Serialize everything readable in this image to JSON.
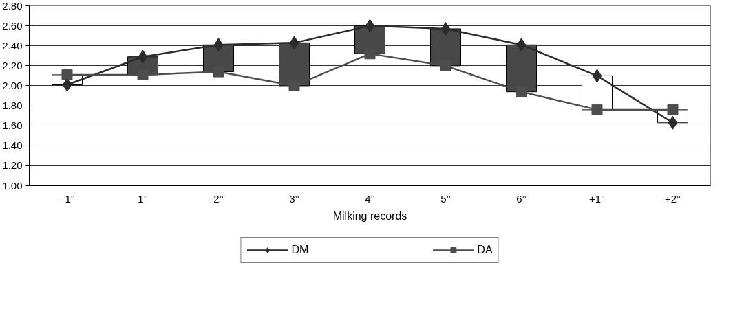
{
  "chart_data": {
    "type": "line",
    "xlabel": "Milking records",
    "categories": [
      "–1°",
      "1°",
      "2°",
      "3°",
      "4°",
      "5°",
      "6°",
      "+1°",
      "+2°"
    ],
    "ylim": [
      1.0,
      2.8
    ],
    "yticks": [
      {
        "value": 1.0,
        "label": "1.00"
      },
      {
        "value": 1.2,
        "label": "1.20"
      },
      {
        "value": 1.4,
        "label": "1.40"
      },
      {
        "value": 1.6,
        "label": "1.60"
      },
      {
        "value": 1.8,
        "label": "1.80"
      },
      {
        "value": 2.0,
        "label": "2.00"
      },
      {
        "value": 2.2,
        "label": "2.20"
      },
      {
        "value": 2.4,
        "label": "2.40"
      },
      {
        "value": 2.6,
        "label": "2.60"
      },
      {
        "value": 2.8,
        "label": "2.80"
      }
    ],
    "grid": "y",
    "legend": "bottom",
    "line_style": "solid",
    "series": [
      {
        "type": "bar",
        "base": [
          2.11,
          2.11,
          2.14,
          2.0,
          2.32,
          2.2,
          1.94,
          1.76,
          1.76
        ],
        "values": [
          -0.1,
          0.18,
          0.27,
          0.43,
          0.28,
          0.37,
          0.47,
          0.34,
          -0.13
        ],
        "colors": [
          "#ffffff",
          "#484848",
          "#484848",
          "#484848",
          "#484848",
          "#484848",
          "#484848",
          "#ffffff",
          "#ffffff"
        ]
      },
      {
        "name": "DM",
        "color": "#2b2b2b",
        "marker": "diamond",
        "values": [
          2.01,
          2.29,
          2.41,
          2.43,
          2.6,
          2.57,
          2.41,
          2.1,
          1.63
        ]
      },
      {
        "name": "DA",
        "color": "#4d4d4d",
        "marker": "square",
        "values": [
          2.11,
          2.11,
          2.14,
          2.0,
          2.32,
          2.2,
          1.94,
          1.76,
          1.76
        ]
      }
    ]
  }
}
